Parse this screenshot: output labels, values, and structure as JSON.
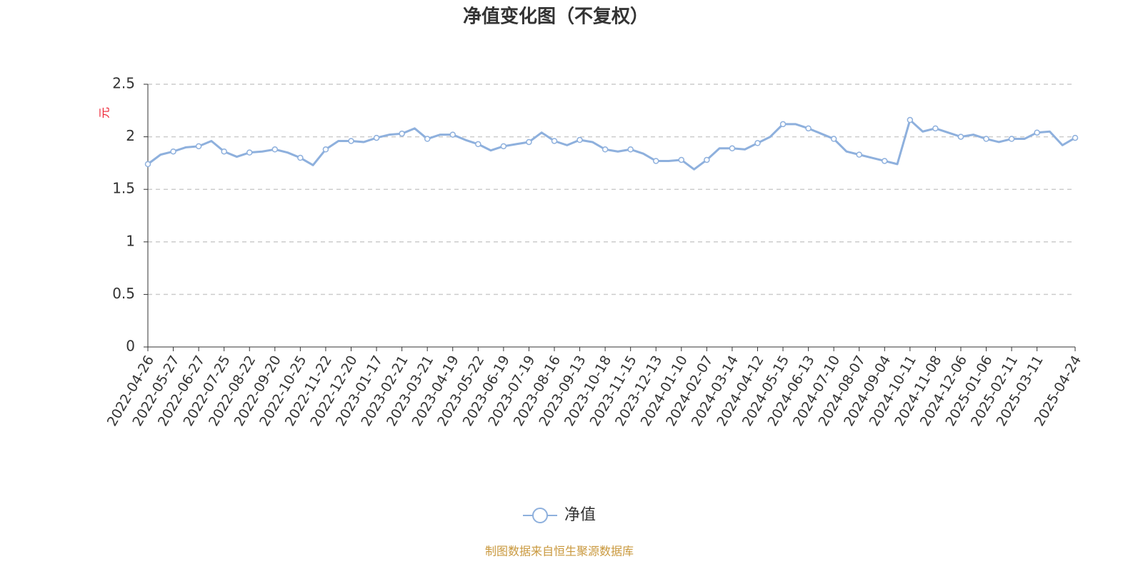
{
  "chart_data": {
    "type": "line",
    "title": "净值变化图（不复权）",
    "y_label": "元",
    "source": "制图数据来自恒生聚源数据库",
    "categories": [
      "2022-04-26",
      null,
      "2022-05-27",
      null,
      "2022-06-27",
      null,
      "2022-07-25",
      null,
      "2022-08-22",
      null,
      "2022-09-20",
      null,
      "2022-10-25",
      null,
      "2022-11-22",
      null,
      "2022-12-20",
      null,
      "2023-01-17",
      null,
      "2023-02-21",
      null,
      "2023-03-21",
      null,
      "2023-04-19",
      null,
      "2023-05-22",
      null,
      "2023-06-19",
      null,
      "2023-07-19",
      null,
      "2023-08-16",
      null,
      "2023-09-13",
      null,
      "2023-10-18",
      null,
      "2023-11-15",
      null,
      "2023-12-13",
      null,
      "2024-01-10",
      null,
      "2024-02-07",
      null,
      "2024-03-14",
      null,
      "2024-04-12",
      null,
      "2024-05-15",
      null,
      "2024-06-13",
      null,
      "2024-07-10",
      null,
      "2024-08-07",
      null,
      "2024-09-04",
      null,
      "2024-10-11",
      null,
      "2024-11-08",
      null,
      "2024-12-06",
      null,
      "2025-01-06",
      null,
      "2025-02-11",
      null,
      "2025-03-11",
      null,
      null,
      "2025-04-24"
    ],
    "series": [
      {
        "name": "净值",
        "color": "#8eb0dd",
        "values": [
          1.74,
          1.83,
          1.86,
          1.9,
          1.91,
          1.96,
          1.86,
          1.81,
          1.85,
          1.86,
          1.88,
          1.85,
          1.8,
          1.73,
          1.88,
          1.96,
          1.96,
          1.95,
          1.99,
          2.02,
          2.03,
          2.08,
          1.98,
          2.02,
          2.02,
          1.97,
          1.93,
          1.87,
          1.91,
          1.93,
          1.95,
          2.04,
          1.96,
          1.92,
          1.97,
          1.95,
          1.88,
          1.86,
          1.88,
          1.84,
          1.77,
          1.77,
          1.78,
          1.69,
          1.78,
          1.89,
          1.89,
          1.88,
          1.94,
          2.0,
          2.12,
          2.12,
          2.08,
          2.03,
          1.98,
          1.86,
          1.83,
          1.8,
          1.77,
          1.74,
          2.16,
          2.05,
          2.08,
          2.04,
          2.0,
          2.02,
          1.98,
          1.95,
          1.98,
          1.98,
          2.04,
          2.05,
          1.92,
          1.99
        ]
      }
    ],
    "ylim": [
      0,
      2.5
    ],
    "yticks": [
      0,
      0.5,
      1,
      1.5,
      2,
      2.5
    ],
    "grid": true,
    "legend": "bottom"
  }
}
